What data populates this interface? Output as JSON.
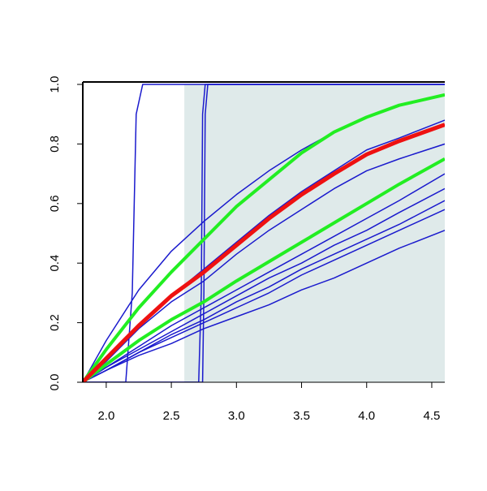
{
  "chart_data": {
    "type": "line",
    "x": [
      1.82,
      2.0,
      2.25,
      2.5,
      2.75,
      3.0,
      3.25,
      3.5,
      3.75,
      4.0,
      4.25,
      4.6
    ],
    "xlim": [
      1.82,
      4.6
    ],
    "ylim": [
      0,
      1.0
    ],
    "xticks": [
      {
        "value": 2,
        "label": "2.0"
      },
      {
        "value": 2.5,
        "label": "2.5"
      },
      {
        "value": 3,
        "label": "3.0"
      },
      {
        "value": 3.5,
        "label": "3.5"
      },
      {
        "value": 4,
        "label": "4.0"
      },
      {
        "value": 4.5,
        "label": "4.5"
      }
    ],
    "yticks": [
      {
        "value": 0,
        "label": "0.0"
      },
      {
        "value": 0.2,
        "label": "0.2"
      },
      {
        "value": 0.4,
        "label": "0.4"
      },
      {
        "value": 0.6,
        "label": "0.6"
      },
      {
        "value": 0.8,
        "label": "0.8"
      },
      {
        "value": 1,
        "label": "1.0"
      }
    ],
    "shaded_region": {
      "xmin": 2.6,
      "xmax": 4.6,
      "ymin": 0,
      "ymax": 1,
      "color": "#dfeaea"
    },
    "series": [
      {
        "color": "#1a1acd",
        "line_width": 1.5,
        "x": [
          1.82,
          2.15,
          2.2,
          2.23,
          2.28,
          4.6
        ],
        "values": [
          0,
          0,
          0.3,
          0.9,
          1,
          1
        ]
      },
      {
        "color": "#1a1acd",
        "line_width": 1.5,
        "x": [
          1.82,
          2.71,
          2.73,
          2.74,
          2.76,
          4.6
        ],
        "values": [
          0,
          0,
          0.3,
          0.9,
          1,
          1
        ]
      },
      {
        "color": "#1a1acd",
        "line_width": 1.5,
        "x": [
          1.82,
          2.74,
          2.75,
          2.76,
          2.78,
          4.6
        ],
        "values": [
          0,
          0,
          0.3,
          0.9,
          1,
          1
        ]
      },
      {
        "color": "#1a1acd",
        "line_width": 1.5,
        "values": [
          0,
          0.14,
          0.31,
          0.44,
          0.54,
          0.63,
          0.71,
          0.78,
          0.84,
          0.89,
          0.93,
          0.965
        ]
      },
      {
        "color": "#1a1acd",
        "line_width": 1.5,
        "values": [
          0,
          0.08,
          0.19,
          0.29,
          0.38,
          0.47,
          0.56,
          0.64,
          0.71,
          0.78,
          0.82,
          0.88
        ]
      },
      {
        "color": "#1a1acd",
        "line_width": 1.5,
        "values": [
          0,
          0.07,
          0.18,
          0.27,
          0.34,
          0.43,
          0.51,
          0.58,
          0.65,
          0.71,
          0.75,
          0.8
        ]
      },
      {
        "color": "#1a1acd",
        "line_width": 1.5,
        "values": [
          0,
          0.05,
          0.12,
          0.19,
          0.25,
          0.31,
          0.37,
          0.43,
          0.49,
          0.55,
          0.61,
          0.7
        ]
      },
      {
        "color": "#1a1acd",
        "line_width": 1.5,
        "values": [
          0,
          0.05,
          0.11,
          0.17,
          0.23,
          0.29,
          0.35,
          0.4,
          0.46,
          0.51,
          0.57,
          0.65
        ]
      },
      {
        "color": "#1a1acd",
        "line_width": 1.5,
        "values": [
          0,
          0.04,
          0.1,
          0.16,
          0.21,
          0.27,
          0.32,
          0.38,
          0.43,
          0.48,
          0.53,
          0.61
        ]
      },
      {
        "color": "#1a1acd",
        "line_width": 1.5,
        "values": [
          0,
          0.04,
          0.1,
          0.15,
          0.2,
          0.25,
          0.3,
          0.36,
          0.41,
          0.46,
          0.51,
          0.58
        ]
      },
      {
        "color": "#1a1acd",
        "line_width": 1.5,
        "values": [
          0,
          0.04,
          0.09,
          0.13,
          0.18,
          0.22,
          0.26,
          0.31,
          0.35,
          0.4,
          0.45,
          0.51
        ]
      },
      {
        "color": "#22ee22",
        "line_width": 4,
        "values": [
          0,
          0.11,
          0.25,
          0.37,
          0.48,
          0.59,
          0.68,
          0.77,
          0.84,
          0.89,
          0.93,
          0.965
        ]
      },
      {
        "color": "#22ee22",
        "line_width": 4,
        "values": [
          0,
          0.06,
          0.14,
          0.21,
          0.27,
          0.34,
          0.405,
          0.47,
          0.535,
          0.6,
          0.665,
          0.75
        ]
      },
      {
        "color": "#ee1111",
        "line_width": 5,
        "values": [
          0,
          0.08,
          0.19,
          0.29,
          0.37,
          0.46,
          0.55,
          0.63,
          0.7,
          0.765,
          0.81,
          0.865
        ]
      }
    ]
  }
}
